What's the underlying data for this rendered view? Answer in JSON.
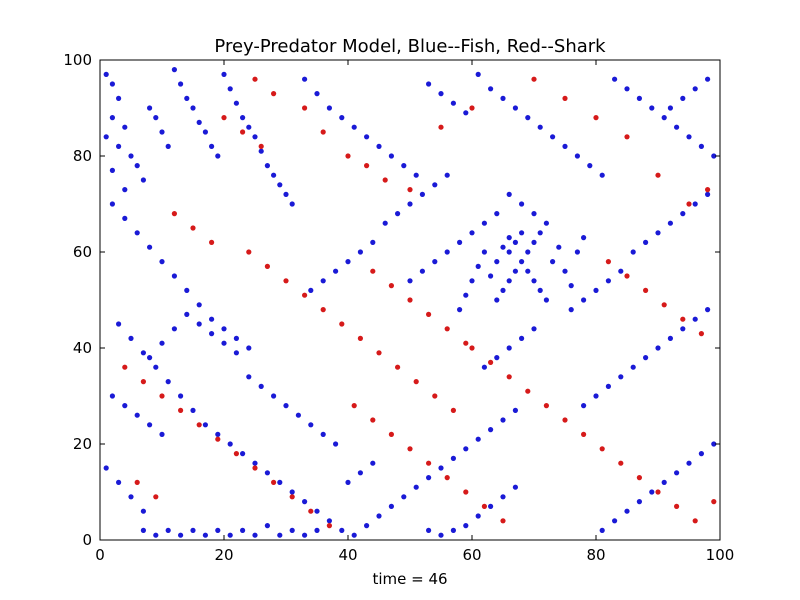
{
  "chart_data": {
    "type": "scatter",
    "title": "Prey-Predator Model, Blue--Fish, Red--Shark",
    "xlabel": "time = 46",
    "ylabel": "",
    "xlim": [
      0,
      100
    ],
    "ylim": [
      0,
      100
    ],
    "xticks": [
      "0",
      "20",
      "40",
      "60",
      "80",
      "100"
    ],
    "yticks": [
      "0",
      "20",
      "40",
      "60",
      "80",
      "100"
    ],
    "grid": false,
    "series": [
      {
        "color": "#1a1ad6",
        "points": [
          [
            1,
            97
          ],
          [
            2,
            95
          ],
          [
            3,
            92
          ],
          [
            2,
            88
          ],
          [
            4,
            86
          ],
          [
            1,
            84
          ],
          [
            3,
            82
          ],
          [
            5,
            80
          ],
          [
            6,
            78
          ],
          [
            2,
            77
          ],
          [
            7,
            75
          ],
          [
            4,
            73
          ],
          [
            8,
            90
          ],
          [
            9,
            88
          ],
          [
            10,
            85
          ],
          [
            11,
            82
          ],
          [
            12,
            98
          ],
          [
            13,
            95
          ],
          [
            14,
            92
          ],
          [
            15,
            90
          ],
          [
            16,
            87
          ],
          [
            17,
            85
          ],
          [
            18,
            82
          ],
          [
            19,
            80
          ],
          [
            20,
            97
          ],
          [
            21,
            94
          ],
          [
            22,
            91
          ],
          [
            23,
            88
          ],
          [
            24,
            86
          ],
          [
            25,
            84
          ],
          [
            26,
            81
          ],
          [
            27,
            78
          ],
          [
            28,
            76
          ],
          [
            29,
            74
          ],
          [
            30,
            72
          ],
          [
            31,
            70
          ],
          [
            33,
            96
          ],
          [
            35,
            93
          ],
          [
            37,
            90
          ],
          [
            39,
            88
          ],
          [
            41,
            86
          ],
          [
            43,
            84
          ],
          [
            45,
            82
          ],
          [
            47,
            80
          ],
          [
            49,
            78
          ],
          [
            51,
            76
          ],
          [
            53,
            95
          ],
          [
            55,
            93
          ],
          [
            57,
            91
          ],
          [
            59,
            89
          ],
          [
            61,
            97
          ],
          [
            63,
            94
          ],
          [
            65,
            92
          ],
          [
            67,
            90
          ],
          [
            69,
            88
          ],
          [
            71,
            86
          ],
          [
            73,
            84
          ],
          [
            75,
            82
          ],
          [
            77,
            80
          ],
          [
            79,
            78
          ],
          [
            81,
            76
          ],
          [
            83,
            96
          ],
          [
            85,
            94
          ],
          [
            87,
            92
          ],
          [
            89,
            90
          ],
          [
            91,
            88
          ],
          [
            93,
            86
          ],
          [
            95,
            84
          ],
          [
            97,
            82
          ],
          [
            99,
            80
          ],
          [
            98,
            96
          ],
          [
            96,
            94
          ],
          [
            94,
            92
          ],
          [
            92,
            90
          ],
          [
            2,
            70
          ],
          [
            4,
            67
          ],
          [
            6,
            64
          ],
          [
            8,
            61
          ],
          [
            10,
            58
          ],
          [
            12,
            55
          ],
          [
            14,
            52
          ],
          [
            16,
            49
          ],
          [
            18,
            46
          ],
          [
            20,
            44
          ],
          [
            22,
            42
          ],
          [
            24,
            40
          ],
          [
            3,
            45
          ],
          [
            5,
            42
          ],
          [
            7,
            39
          ],
          [
            9,
            36
          ],
          [
            11,
            33
          ],
          [
            13,
            30
          ],
          [
            15,
            27
          ],
          [
            17,
            24
          ],
          [
            19,
            22
          ],
          [
            21,
            20
          ],
          [
            23,
            18
          ],
          [
            25,
            16
          ],
          [
            27,
            14
          ],
          [
            29,
            12
          ],
          [
            31,
            10
          ],
          [
            33,
            8
          ],
          [
            35,
            6
          ],
          [
            37,
            4
          ],
          [
            39,
            2
          ],
          [
            41,
            1
          ],
          [
            43,
            3
          ],
          [
            45,
            5
          ],
          [
            47,
            7
          ],
          [
            49,
            9
          ],
          [
            51,
            11
          ],
          [
            53,
            13
          ],
          [
            55,
            15
          ],
          [
            57,
            17
          ],
          [
            59,
            19
          ],
          [
            61,
            21
          ],
          [
            63,
            23
          ],
          [
            65,
            25
          ],
          [
            67,
            27
          ],
          [
            64,
            50
          ],
          [
            65,
            52
          ],
          [
            66,
            54
          ],
          [
            67,
            56
          ],
          [
            68,
            58
          ],
          [
            69,
            60
          ],
          [
            70,
            62
          ],
          [
            71,
            64
          ],
          [
            66,
            60
          ],
          [
            67,
            62
          ],
          [
            68,
            64
          ],
          [
            69,
            56
          ],
          [
            70,
            54
          ],
          [
            71,
            52
          ],
          [
            72,
            50
          ],
          [
            63,
            55
          ],
          [
            64,
            58
          ],
          [
            65,
            61
          ],
          [
            66,
            63
          ],
          [
            62,
            60
          ],
          [
            61,
            57
          ],
          [
            60,
            54
          ],
          [
            59,
            51
          ],
          [
            58,
            48
          ],
          [
            73,
            58
          ],
          [
            74,
            61
          ],
          [
            75,
            56
          ],
          [
            76,
            53
          ],
          [
            77,
            60
          ],
          [
            78,
            63
          ],
          [
            72,
            66
          ],
          [
            70,
            68
          ],
          [
            68,
            70
          ],
          [
            66,
            72
          ],
          [
            64,
            68
          ],
          [
            62,
            66
          ],
          [
            60,
            64
          ],
          [
            58,
            62
          ],
          [
            56,
            60
          ],
          [
            54,
            58
          ],
          [
            52,
            56
          ],
          [
            50,
            54
          ],
          [
            7,
            2
          ],
          [
            9,
            1
          ],
          [
            11,
            2
          ],
          [
            13,
            1
          ],
          [
            15,
            2
          ],
          [
            17,
            1
          ],
          [
            19,
            2
          ],
          [
            21,
            1
          ],
          [
            23,
            2
          ],
          [
            25,
            1
          ],
          [
            27,
            3
          ],
          [
            29,
            1
          ],
          [
            31,
            2
          ],
          [
            33,
            1
          ],
          [
            35,
            2
          ],
          [
            53,
            2
          ],
          [
            55,
            1
          ],
          [
            57,
            2
          ],
          [
            59,
            3
          ],
          [
            61,
            5
          ],
          [
            63,
            7
          ],
          [
            65,
            9
          ],
          [
            67,
            11
          ],
          [
            81,
            2
          ],
          [
            83,
            4
          ],
          [
            85,
            6
          ],
          [
            87,
            8
          ],
          [
            89,
            10
          ],
          [
            91,
            12
          ],
          [
            93,
            14
          ],
          [
            95,
            16
          ],
          [
            97,
            18
          ],
          [
            99,
            20
          ],
          [
            14,
            47
          ],
          [
            16,
            45
          ],
          [
            18,
            43
          ],
          [
            20,
            41
          ],
          [
            22,
            39
          ],
          [
            12,
            44
          ],
          [
            10,
            41
          ],
          [
            8,
            38
          ],
          [
            40,
            12
          ],
          [
            42,
            14
          ],
          [
            44,
            16
          ],
          [
            38,
            20
          ],
          [
            36,
            22
          ],
          [
            34,
            24
          ],
          [
            32,
            26
          ],
          [
            30,
            28
          ],
          [
            28,
            30
          ],
          [
            26,
            32
          ],
          [
            24,
            34
          ],
          [
            78,
            28
          ],
          [
            80,
            30
          ],
          [
            82,
            32
          ],
          [
            84,
            34
          ],
          [
            86,
            36
          ],
          [
            88,
            38
          ],
          [
            90,
            40
          ],
          [
            92,
            42
          ],
          [
            94,
            44
          ],
          [
            96,
            46
          ],
          [
            98,
            48
          ],
          [
            2,
            30
          ],
          [
            4,
            28
          ],
          [
            6,
            26
          ],
          [
            8,
            24
          ],
          [
            10,
            22
          ],
          [
            1,
            15
          ],
          [
            3,
            12
          ],
          [
            5,
            9
          ],
          [
            7,
            6
          ],
          [
            46,
            66
          ],
          [
            48,
            68
          ],
          [
            50,
            70
          ],
          [
            52,
            72
          ],
          [
            54,
            74
          ],
          [
            56,
            76
          ],
          [
            44,
            62
          ],
          [
            42,
            60
          ],
          [
            40,
            58
          ],
          [
            38,
            56
          ],
          [
            36,
            54
          ],
          [
            34,
            52
          ],
          [
            86,
            60
          ],
          [
            88,
            62
          ],
          [
            90,
            64
          ],
          [
            92,
            66
          ],
          [
            94,
            68
          ],
          [
            96,
            70
          ],
          [
            98,
            72
          ],
          [
            84,
            56
          ],
          [
            82,
            54
          ],
          [
            80,
            52
          ],
          [
            78,
            50
          ],
          [
            76,
            48
          ],
          [
            70,
            44
          ],
          [
            68,
            42
          ],
          [
            66,
            40
          ],
          [
            64,
            38
          ],
          [
            62,
            36
          ]
        ]
      },
      {
        "color": "#d61a1a",
        "points": [
          [
            25,
            96
          ],
          [
            28,
            93
          ],
          [
            33,
            90
          ],
          [
            36,
            85
          ],
          [
            40,
            80
          ],
          [
            43,
            78
          ],
          [
            46,
            75
          ],
          [
            50,
            73
          ],
          [
            55,
            86
          ],
          [
            60,
            90
          ],
          [
            70,
            96
          ],
          [
            75,
            92
          ],
          [
            80,
            88
          ],
          [
            85,
            84
          ],
          [
            90,
            76
          ],
          [
            95,
            70
          ],
          [
            98,
            73
          ],
          [
            24,
            60
          ],
          [
            27,
            57
          ],
          [
            30,
            54
          ],
          [
            33,
            51
          ],
          [
            36,
            48
          ],
          [
            39,
            45
          ],
          [
            42,
            42
          ],
          [
            45,
            39
          ],
          [
            48,
            36
          ],
          [
            51,
            33
          ],
          [
            54,
            30
          ],
          [
            57,
            27
          ],
          [
            12,
            68
          ],
          [
            15,
            65
          ],
          [
            18,
            62
          ],
          [
            4,
            36
          ],
          [
            7,
            33
          ],
          [
            10,
            30
          ],
          [
            13,
            27
          ],
          [
            16,
            24
          ],
          [
            19,
            21
          ],
          [
            22,
            18
          ],
          [
            25,
            15
          ],
          [
            28,
            12
          ],
          [
            31,
            9
          ],
          [
            34,
            6
          ],
          [
            37,
            3
          ],
          [
            60,
            40
          ],
          [
            63,
            37
          ],
          [
            66,
            34
          ],
          [
            69,
            31
          ],
          [
            72,
            28
          ],
          [
            75,
            25
          ],
          [
            78,
            22
          ],
          [
            81,
            19
          ],
          [
            84,
            16
          ],
          [
            87,
            13
          ],
          [
            90,
            10
          ],
          [
            93,
            7
          ],
          [
            96,
            4
          ],
          [
            99,
            8
          ],
          [
            44,
            56
          ],
          [
            47,
            53
          ],
          [
            50,
            50
          ],
          [
            53,
            47
          ],
          [
            56,
            44
          ],
          [
            59,
            41
          ],
          [
            82,
            58
          ],
          [
            85,
            55
          ],
          [
            88,
            52
          ],
          [
            91,
            49
          ],
          [
            94,
            46
          ],
          [
            97,
            43
          ],
          [
            20,
            88
          ],
          [
            23,
            85
          ],
          [
            26,
            82
          ],
          [
            6,
            12
          ],
          [
            9,
            9
          ],
          [
            41,
            28
          ],
          [
            44,
            25
          ],
          [
            47,
            22
          ],
          [
            50,
            19
          ],
          [
            53,
            16
          ],
          [
            56,
            13
          ],
          [
            59,
            10
          ],
          [
            62,
            7
          ],
          [
            65,
            4
          ]
        ]
      }
    ]
  }
}
